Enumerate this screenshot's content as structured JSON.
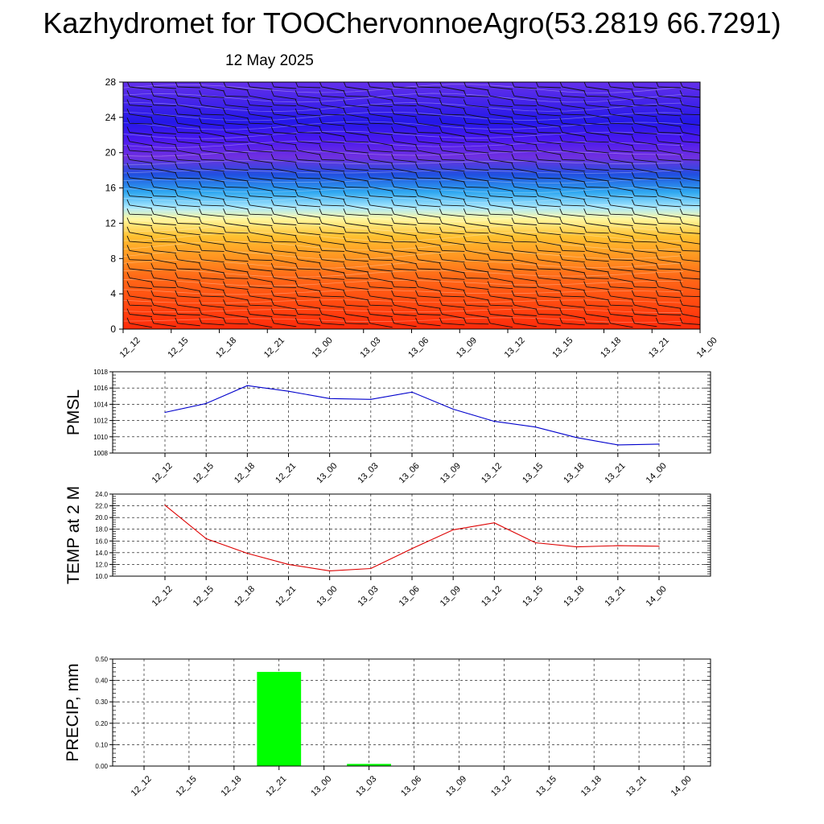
{
  "title": "Kazhydromet for TOOChervonnoeAgro(53.2819 66.7291)",
  "subtitle": "12 May 2025",
  "chart_data": [
    {
      "type": "heatmap",
      "ylim": [
        0,
        28
      ],
      "yticks": [
        "0",
        "4",
        "8",
        "12",
        "16",
        "20",
        "24",
        "28"
      ],
      "xticks": [
        "12_12",
        "12_15",
        "12_18",
        "12_21",
        "13_00",
        "13_03",
        "13_06",
        "13_09",
        "13_12",
        "13_15",
        "13_18",
        "13_21",
        "14_00"
      ],
      "color_bands": [
        {
          "y": 0,
          "color": "#ff2a0a"
        },
        {
          "y": 3,
          "color": "#ff4a10"
        },
        {
          "y": 6,
          "color": "#ff6a18"
        },
        {
          "y": 8,
          "color": "#ff9220"
        },
        {
          "y": 10.5,
          "color": "#ffc030"
        },
        {
          "y": 12.5,
          "color": "#fff8a0"
        },
        {
          "y": 13.8,
          "color": "#a8e8ff"
        },
        {
          "y": 15.5,
          "color": "#30a8f0"
        },
        {
          "y": 17.5,
          "color": "#2050e0"
        },
        {
          "y": 19.5,
          "color": "#7030e0"
        },
        {
          "y": 21.5,
          "color": "#4a18f0"
        },
        {
          "y": 23.5,
          "color": "#2418e8"
        },
        {
          "y": 28,
          "color": "#6430ea"
        }
      ],
      "wind_barbs": true
    },
    {
      "type": "line",
      "ylabel": "PMSL",
      "ylim": [
        1008,
        1018
      ],
      "yticks": [
        "1008",
        "1010",
        "1012",
        "1014",
        "1016",
        "1018"
      ],
      "grid": true,
      "categories": [
        "12_12",
        "12_15",
        "12_18",
        "12_21",
        "13_00",
        "13_03",
        "13_06",
        "13_09",
        "13_12",
        "13_15",
        "13_18",
        "13_21",
        "14_00"
      ],
      "series": [
        {
          "values": [
            1013.0,
            1014.1,
            1016.3,
            1015.6,
            1014.7,
            1014.6,
            1015.5,
            1013.4,
            1011.9,
            1011.2,
            1009.9,
            1009.0,
            1009.1
          ],
          "color": "#0000cc"
        }
      ]
    },
    {
      "type": "line",
      "ylabel": "TEMP at 2 M",
      "ylim": [
        10.0,
        24.0
      ],
      "yticks": [
        "10.0",
        "12.0",
        "14.0",
        "16.0",
        "18.0",
        "20.0",
        "22.0",
        "24.0"
      ],
      "grid": true,
      "categories": [
        "12_12",
        "12_15",
        "12_18",
        "12_21",
        "13_00",
        "13_03",
        "13_06",
        "13_09",
        "13_12",
        "13_15",
        "13_18",
        "13_21",
        "14_00"
      ],
      "series": [
        {
          "values": [
            22.1,
            16.4,
            13.9,
            12.0,
            10.9,
            11.3,
            14.7,
            17.9,
            19.1,
            15.7,
            15.0,
            15.2,
            15.1
          ],
          "color": "#dd0000"
        }
      ]
    },
    {
      "type": "bar",
      "ylabel": "PRECIP, mm",
      "ylim": [
        0.0,
        0.5
      ],
      "yticks": [
        "0.00",
        "0.10",
        "0.20",
        "0.30",
        "0.40",
        "0.50"
      ],
      "grid": true,
      "categories": [
        "12_12",
        "12_15",
        "12_18",
        "12_21",
        "13_00",
        "13_03",
        "13_06",
        "13_09",
        "13_12",
        "13_15",
        "13_18",
        "13_21",
        "14_00"
      ],
      "values": [
        0,
        0,
        0,
        0.44,
        0,
        0.01,
        0,
        0,
        0,
        0,
        0,
        0,
        0
      ],
      "color": "#00ff00"
    }
  ]
}
